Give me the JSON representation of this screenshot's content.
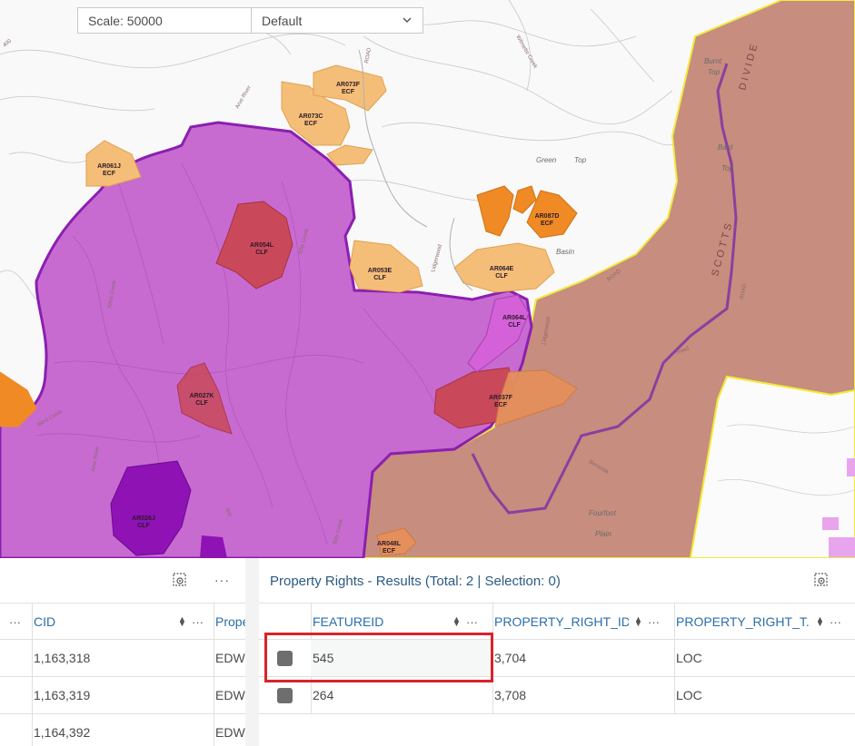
{
  "toolbar": {
    "scale_label": "Scale: 50000",
    "style_value": "Default"
  },
  "map": {
    "parcels": [
      "AR073F\nECF",
      "AR073C\nECF",
      "AR061J\nECF",
      "AR054L\nCLF",
      "AR087D\nECF",
      "AR053E\nCLF",
      "AR064E\nCLF",
      "AR064L\nCLF",
      "AR027K\nCLF",
      "AR037F\nECF",
      "AR026J\nCLF",
      "AR048L\nECF"
    ],
    "places": [
      "Green",
      "Top",
      "Basin",
      "Burnt",
      "Top",
      "Baid",
      "Top",
      "Fourfoot",
      "Plain"
    ],
    "roads": [
      "Arve River",
      "West Creek",
      "West Creek",
      "Billy Creek",
      "Billy Creek",
      "Arve River",
      "Lidgerwood",
      "Lidgerwood",
      "ROAD",
      "ROAD",
      "Road",
      "Bensoda",
      "Wilmette Creek",
      "ROAD",
      "400",
      "300"
    ],
    "divide_text": [
      "SCOTTS",
      "DIVIDE"
    ],
    "colors": {
      "clf_zone": "#c86bd1",
      "clf_border": "#8b1fb0",
      "ecf_light": "#f5be78",
      "ecf_dark": "#f08a25",
      "red_parcel": "#c9495a",
      "brown_zone": "#c58878",
      "yellow_border": "#f1ea3a"
    }
  },
  "left_panel": {
    "columns": [
      "CID",
      "Prope"
    ],
    "rows": [
      {
        "cid": "1,163,318",
        "prop": "EDW"
      },
      {
        "cid": "1,163,319",
        "prop": "EDW"
      },
      {
        "cid": "1,164,392",
        "prop": "EDW"
      }
    ]
  },
  "right_panel": {
    "title": "Property Rights - Results (Total: 2 | Selection: 0)",
    "columns": [
      "FEATUREID",
      "PROPERTY_RIGHT_ID",
      "PROPERTY_RIGHT_T..."
    ],
    "rows": [
      {
        "featureid": "545",
        "property_right_id": "3,704",
        "type": "LOC"
      },
      {
        "featureid": "264",
        "property_right_id": "3,708",
        "type": "LOC"
      }
    ]
  },
  "icons": {
    "more": "···",
    "sort": "▲▼"
  }
}
